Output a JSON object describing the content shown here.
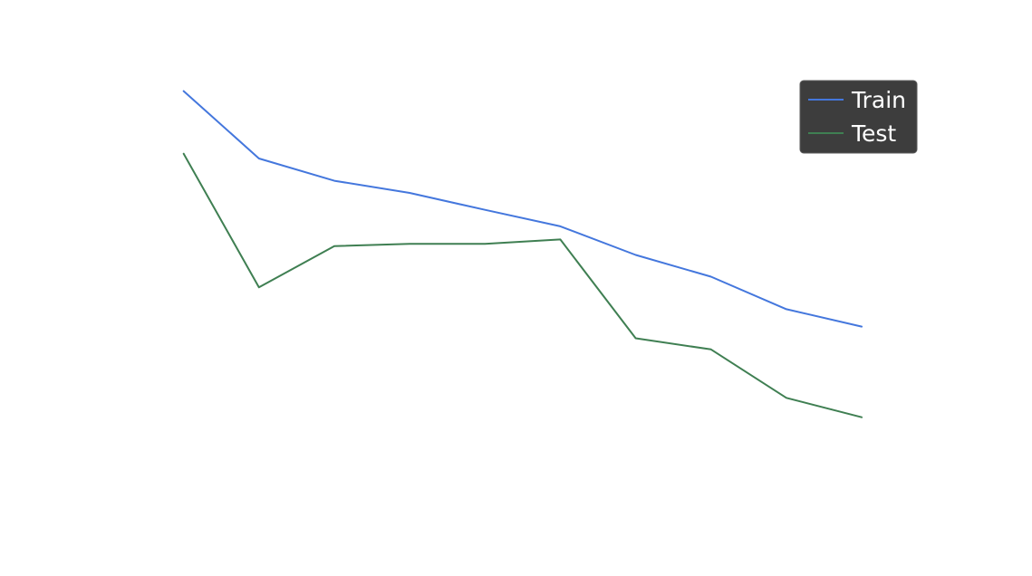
{
  "chart_data": {
    "type": "line",
    "title": "",
    "xlabel": "",
    "ylabel": "",
    "x": [
      1,
      2,
      3,
      4,
      5,
      6,
      7,
      8,
      9,
      10
    ],
    "xlim": [
      0.27,
      10.89
    ],
    "ylim": [
      0,
      100
    ],
    "grid": false,
    "axes_visible": false,
    "legend_position": "top-right",
    "series": [
      {
        "name": "Train",
        "color": "#4477dd",
        "values": [
          89.6,
          75.7,
          71.1,
          68.6,
          65.1,
          61.7,
          55.8,
          51.3,
          44.6,
          41.0
        ]
      },
      {
        "name": "Test",
        "color": "#3f7f52",
        "values": [
          76.7,
          49.1,
          57.6,
          58.1,
          58.1,
          59.0,
          38.6,
          36.3,
          26.3,
          22.3
        ]
      }
    ]
  }
}
